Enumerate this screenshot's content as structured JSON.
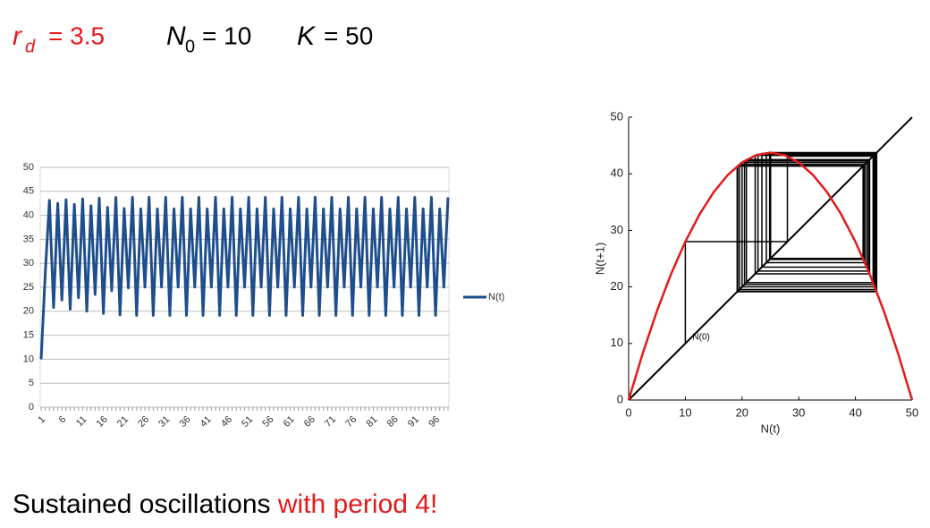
{
  "slide": {
    "params": [
      "r",
      "d",
      "= 3.5",
      "N",
      "0",
      "= 10",
      "K",
      "= 50"
    ],
    "caption": [
      "Sustained oscillations",
      "with period 4!"
    ]
  },
  "chart_data": [
    {
      "type": "line",
      "categories": [
        1,
        null,
        null,
        null,
        null,
        6,
        null,
        null,
        null,
        null,
        11,
        null,
        null,
        null,
        null,
        16,
        null,
        null,
        null,
        null,
        21,
        null,
        null,
        null,
        null,
        26,
        null,
        null,
        null,
        null,
        31,
        null,
        null,
        null,
        null,
        36,
        null,
        null,
        null,
        null,
        41,
        null,
        null,
        null,
        null,
        46,
        null,
        null,
        null,
        null,
        51,
        null,
        null,
        null,
        null,
        56,
        null,
        null,
        null,
        null,
        61,
        null,
        null,
        null,
        null,
        66,
        null,
        null,
        null,
        null,
        71,
        null,
        null,
        null,
        null,
        76,
        null,
        null,
        null,
        null,
        81,
        null,
        null,
        null,
        null,
        86,
        null,
        null,
        null,
        null,
        91,
        null,
        null,
        null,
        null,
        96,
        null,
        null,
        null
      ],
      "series": [
        {
          "name": "N(t)",
          "color": "#1f4e8c",
          "values": [
            10,
            28,
            43.12,
            20.77,
            42.5,
            22.32,
            43.25,
            20.44,
            42.29,
            22.81,
            43.42,
            20.01,
            42.01,
            23.5,
            43.59,
            19.55,
            41.67,
            24.29,
            43.72,
            19.23,
            41.42,
            24.87,
            43.75,
            19.14,
            41.35,
            25.04,
            43.75,
            19.14,
            41.35,
            25.04,
            43.75,
            19.14,
            41.35,
            25.04,
            43.75,
            19.14,
            41.35,
            25.04,
            43.75,
            19.14,
            41.35,
            25.04,
            43.75,
            19.14,
            41.35,
            25.04,
            43.75,
            19.14,
            41.35,
            25.04,
            43.75,
            19.14,
            41.35,
            25.04,
            43.75,
            19.14,
            41.35,
            25.04,
            43.75,
            19.14,
            41.35,
            25.04,
            43.75,
            19.14,
            41.35,
            25.04,
            43.75,
            19.14,
            41.35,
            25.04,
            43.75,
            19.14,
            41.35,
            25.04,
            43.75,
            19.14,
            41.35,
            25.04,
            43.75,
            19.14,
            41.35,
            25.04,
            43.75,
            19.14,
            41.35,
            25.04,
            43.75,
            19.14,
            41.35,
            25.04,
            43.75,
            19.14,
            41.35,
            25.04,
            43.75,
            19.14,
            41.35,
            25.04,
            43.75
          ]
        }
      ],
      "ylim": [
        0,
        50
      ],
      "yticks": [
        0,
        5,
        10,
        15,
        20,
        25,
        30,
        35,
        40,
        45,
        50
      ],
      "grid": true,
      "legend": "right"
    },
    {
      "type": "cobweb",
      "x_label": "N(t)",
      "y_label": "N(t+1)",
      "annotation": "N(0)",
      "xlim": [
        0,
        50
      ],
      "ylim": [
        0,
        50
      ],
      "xticks": [
        0,
        10,
        20,
        30,
        40,
        50
      ],
      "yticks": [
        0,
        10,
        20,
        30,
        40,
        50
      ],
      "curve": {
        "color": "#e31a1c",
        "x": [
          0,
          2.5,
          5,
          7.5,
          10,
          12.5,
          15,
          17.5,
          20,
          22.5,
          25,
          27.5,
          30,
          32.5,
          35,
          37.5,
          40,
          42.5,
          45,
          47.5,
          50
        ],
        "y": [
          0,
          8.3125,
          15.75,
          22.3125,
          28,
          32.8125,
          36.75,
          39.8125,
          42,
          43.3125,
          43.75,
          43.3125,
          42,
          39.8125,
          36.75,
          32.8125,
          28,
          22.3125,
          15.75,
          8.3125,
          0
        ]
      },
      "cobweb_color": "#000000"
    }
  ]
}
